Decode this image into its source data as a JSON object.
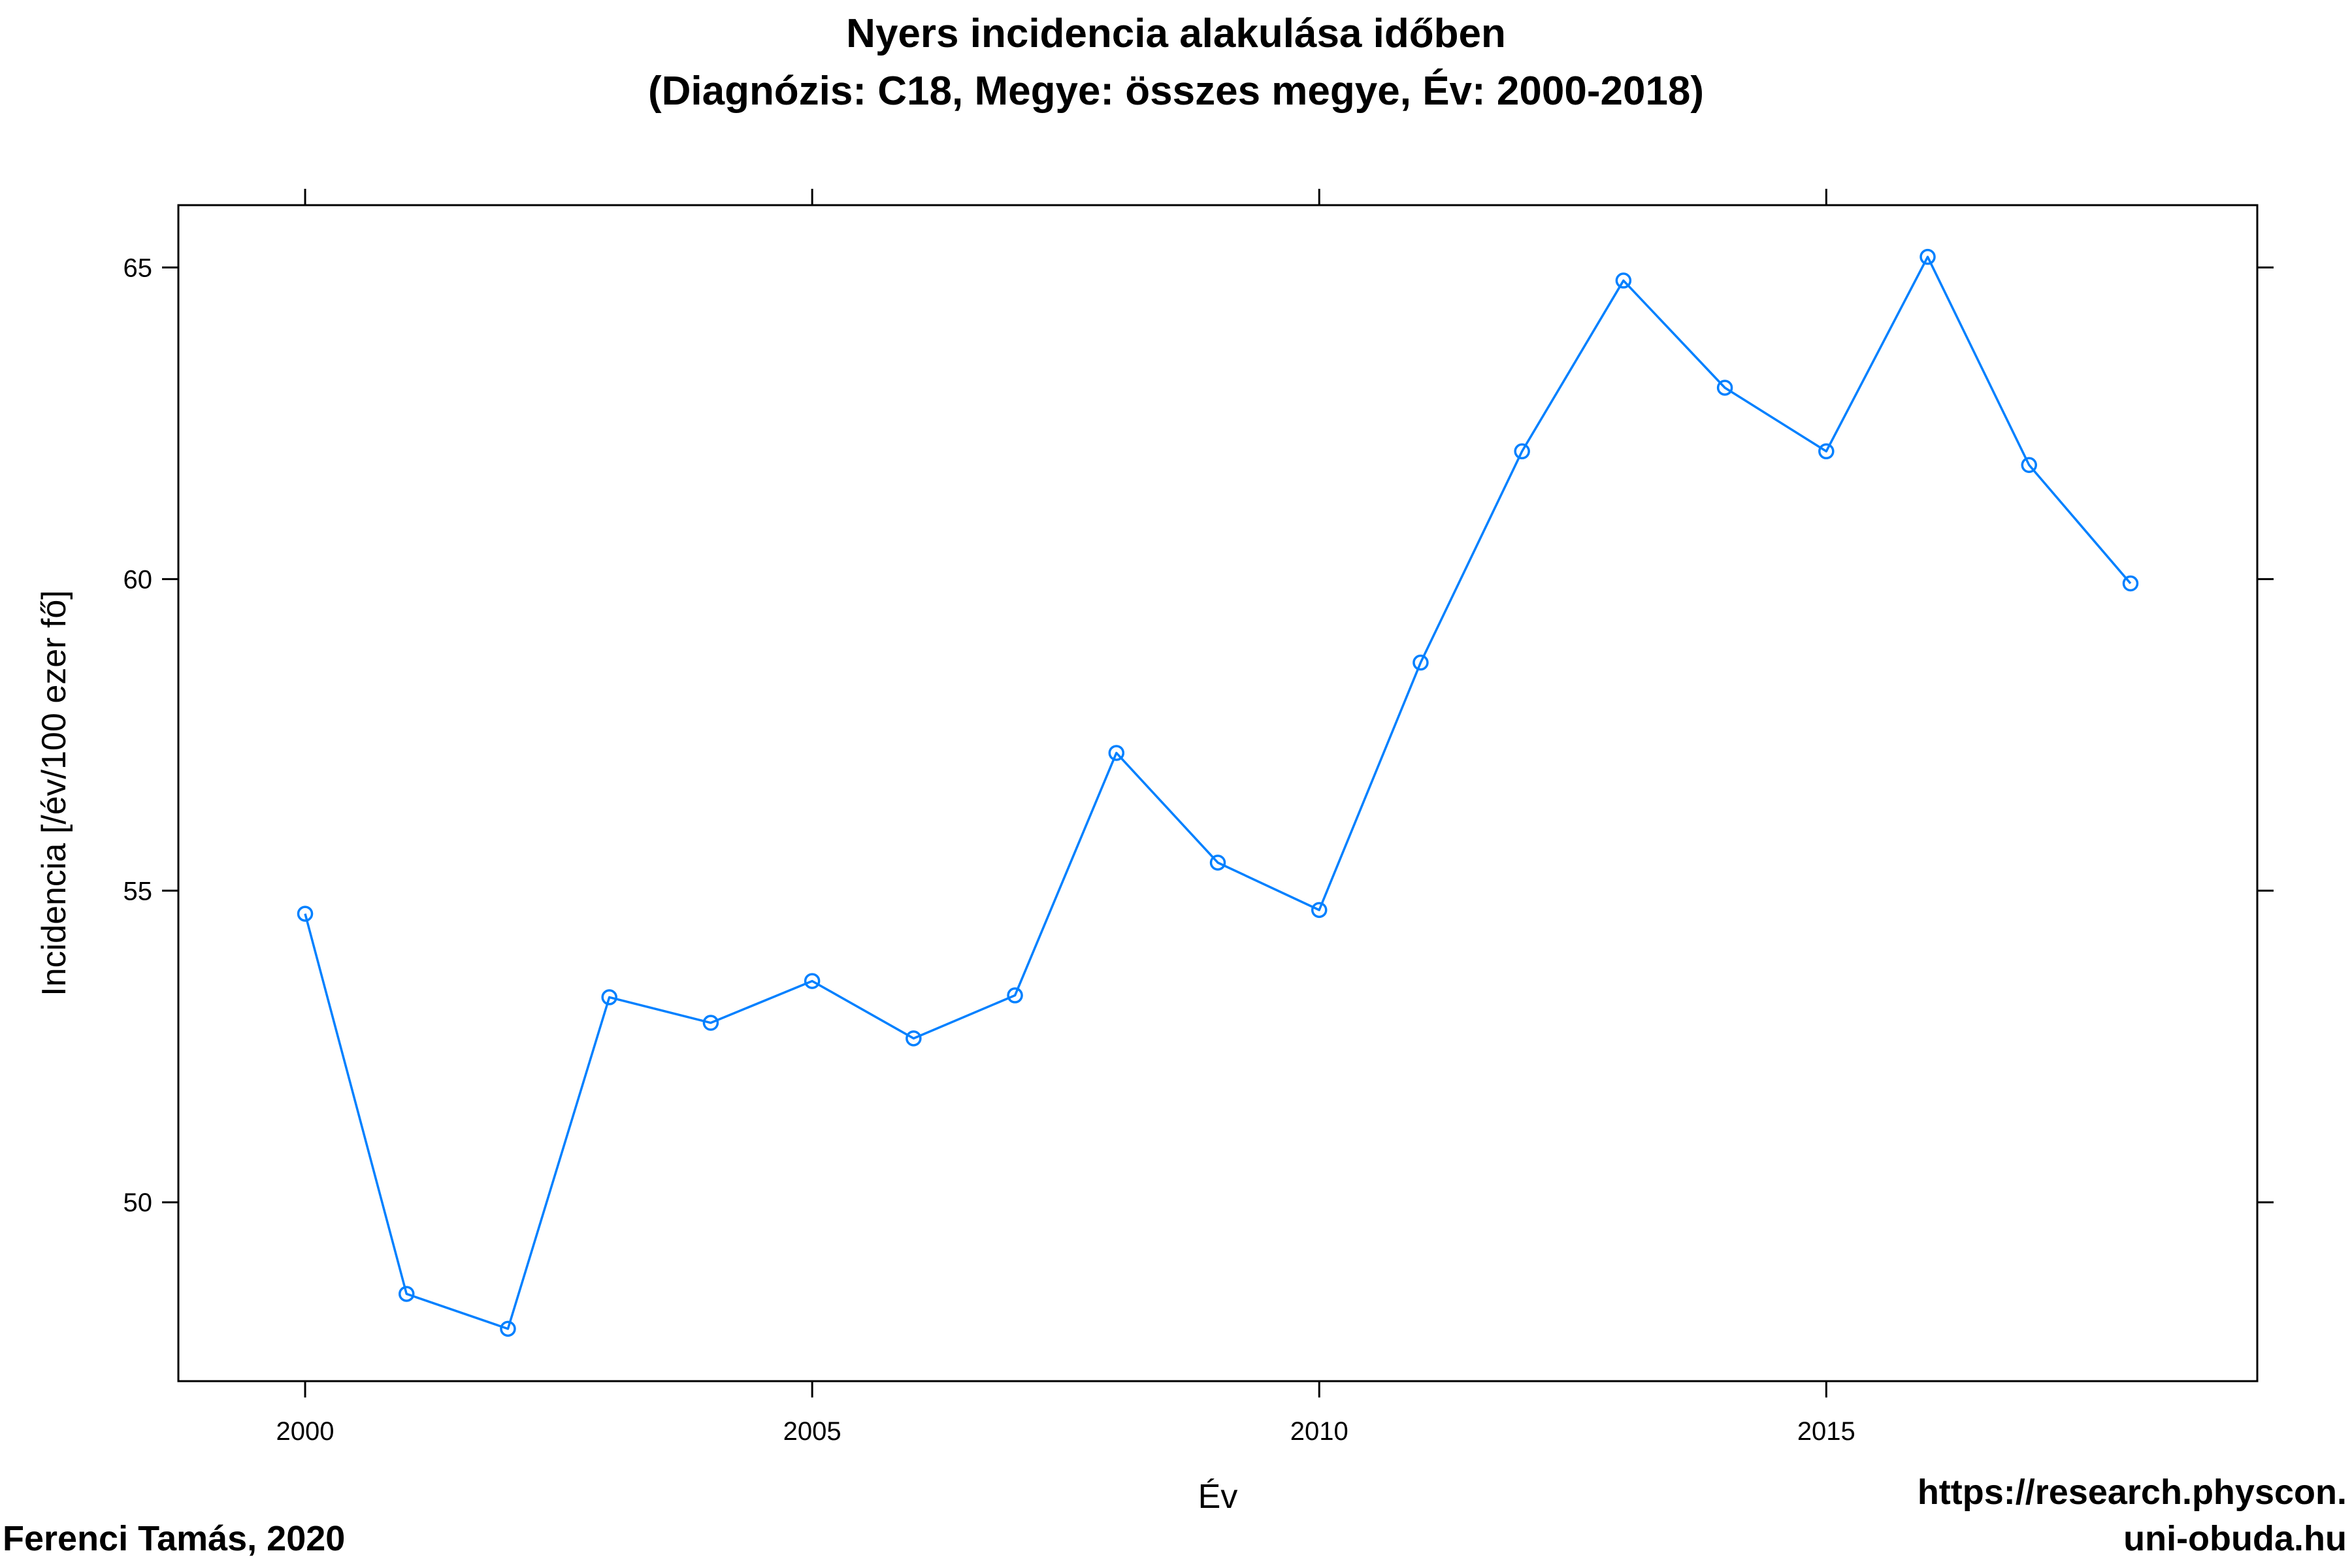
{
  "chart_data": {
    "type": "line",
    "title": [
      "Nyers incidencia alakulása időben",
      "(Diagnózis: C18, Megye: összes megye, Év: 2000-2018)"
    ],
    "xlabel": "Év",
    "ylabel": "Incidencia [/év/100 ezer fő]",
    "x": [
      2000,
      2001,
      2002,
      2003,
      2004,
      2005,
      2006,
      2007,
      2008,
      2009,
      2010,
      2011,
      2012,
      2013,
      2014,
      2015,
      2016,
      2017,
      2018
    ],
    "series": [
      {
        "values": [
          54.63,
          48.53,
          47.97,
          53.29,
          52.88,
          53.55,
          52.63,
          53.32,
          57.21,
          55.45,
          54.69,
          58.66,
          62.05,
          64.79,
          63.07,
          62.05,
          65.17,
          61.83,
          59.93
        ],
        "color": "#0080ff"
      }
    ],
    "xlim": [
      1998.75,
      2019.25
    ],
    "ylim": [
      47.13,
      66.0
    ],
    "xticks": [
      2000,
      2005,
      2010,
      2015
    ],
    "yticks": [
      50,
      55,
      60,
      65
    ],
    "grid": false,
    "legend": "none"
  },
  "footer": {
    "author": "Ferenci Tamás, 2020",
    "url_line1": "https://research.physcon.",
    "url_line2": "uni-obuda.hu"
  },
  "colors": {
    "line": "#0080ff",
    "axis": "#000000",
    "background": "#ffffff"
  }
}
